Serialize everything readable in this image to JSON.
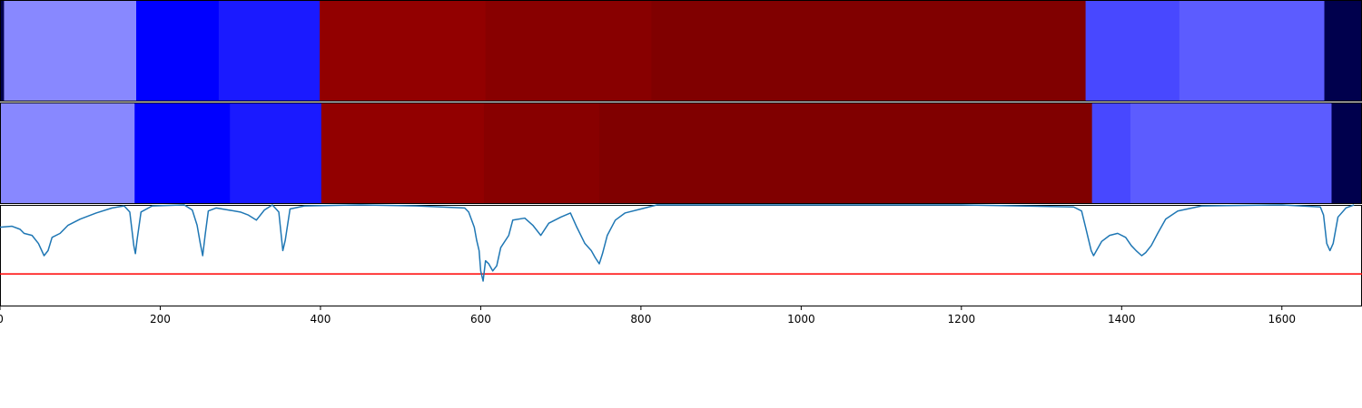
{
  "chart_data": {
    "type": "heatmap",
    "x_range": [
      0,
      1700
    ],
    "x_ticks": [
      "0",
      "200",
      "400",
      "600",
      "800",
      "1000",
      "1200",
      "1400",
      "1600"
    ],
    "x_tick_values": [
      0,
      200,
      400,
      600,
      800,
      1000,
      1200,
      1400,
      1600
    ],
    "rows": [
      {
        "segments": [
          {
            "start": 0,
            "end": 5,
            "color": "#00004d"
          },
          {
            "start": 5,
            "end": 170,
            "color": "#8888ff"
          },
          {
            "start": 170,
            "end": 273,
            "color": "#0000ff"
          },
          {
            "start": 273,
            "end": 399,
            "color": "#1a1aff"
          },
          {
            "start": 399,
            "end": 606,
            "color": "#920000"
          },
          {
            "start": 606,
            "end": 813,
            "color": "#880000"
          },
          {
            "start": 813,
            "end": 1355,
            "color": "#800000"
          },
          {
            "start": 1355,
            "end": 1472,
            "color": "#4848ff"
          },
          {
            "start": 1472,
            "end": 1653,
            "color": "#5c5cff"
          },
          {
            "start": 1653,
            "end": 1700,
            "color": "#00004d"
          }
        ]
      },
      {
        "segments": [
          {
            "start": 0,
            "end": 168,
            "color": "#8888ff"
          },
          {
            "start": 168,
            "end": 287,
            "color": "#0000ff"
          },
          {
            "start": 287,
            "end": 401,
            "color": "#1a1aff"
          },
          {
            "start": 401,
            "end": 604,
            "color": "#920000"
          },
          {
            "start": 604,
            "end": 748,
            "color": "#880000"
          },
          {
            "start": 748,
            "end": 1363,
            "color": "#800000"
          },
          {
            "start": 1363,
            "end": 1411,
            "color": "#4848ff"
          },
          {
            "start": 1411,
            "end": 1662,
            "color": "#5c5cff"
          },
          {
            "start": 1662,
            "end": 1700,
            "color": "#00004d"
          }
        ]
      }
    ],
    "line_series": {
      "color": "#1f77b4",
      "y_range": [
        0,
        1
      ],
      "points": [
        [
          0,
          0.78
        ],
        [
          15,
          0.79
        ],
        [
          25,
          0.76
        ],
        [
          30,
          0.72
        ],
        [
          40,
          0.7
        ],
        [
          48,
          0.62
        ],
        [
          55,
          0.5
        ],
        [
          60,
          0.55
        ],
        [
          65,
          0.68
        ],
        [
          75,
          0.72
        ],
        [
          85,
          0.8
        ],
        [
          100,
          0.86
        ],
        [
          120,
          0.92
        ],
        [
          140,
          0.97
        ],
        [
          155,
          0.99
        ],
        [
          162,
          0.93
        ],
        [
          167,
          0.6
        ],
        [
          169,
          0.52
        ],
        [
          171,
          0.65
        ],
        [
          176,
          0.93
        ],
        [
          190,
          0.99
        ],
        [
          230,
          1.0
        ],
        [
          240,
          0.95
        ],
        [
          246,
          0.8
        ],
        [
          250,
          0.62
        ],
        [
          253,
          0.5
        ],
        [
          256,
          0.7
        ],
        [
          260,
          0.94
        ],
        [
          270,
          0.97
        ],
        [
          285,
          0.95
        ],
        [
          300,
          0.93
        ],
        [
          310,
          0.9
        ],
        [
          320,
          0.85
        ],
        [
          330,
          0.95
        ],
        [
          340,
          1.0
        ],
        [
          348,
          0.93
        ],
        [
          353,
          0.55
        ],
        [
          356,
          0.65
        ],
        [
          362,
          0.96
        ],
        [
          380,
          0.99
        ],
        [
          450,
          1.0
        ],
        [
          520,
          0.99
        ],
        [
          580,
          0.97
        ],
        [
          585,
          0.93
        ],
        [
          592,
          0.78
        ],
        [
          595,
          0.65
        ],
        [
          598,
          0.55
        ],
        [
          600,
          0.35
        ],
        [
          603,
          0.25
        ],
        [
          606,
          0.45
        ],
        [
          610,
          0.42
        ],
        [
          615,
          0.35
        ],
        [
          620,
          0.4
        ],
        [
          625,
          0.58
        ],
        [
          635,
          0.7
        ],
        [
          640,
          0.85
        ],
        [
          655,
          0.87
        ],
        [
          665,
          0.8
        ],
        [
          675,
          0.7
        ],
        [
          685,
          0.82
        ],
        [
          700,
          0.88
        ],
        [
          712,
          0.92
        ],
        [
          720,
          0.78
        ],
        [
          730,
          0.62
        ],
        [
          738,
          0.55
        ],
        [
          743,
          0.48
        ],
        [
          748,
          0.42
        ],
        [
          752,
          0.52
        ],
        [
          758,
          0.7
        ],
        [
          768,
          0.85
        ],
        [
          780,
          0.92
        ],
        [
          800,
          0.96
        ],
        [
          820,
          1.0
        ],
        [
          1000,
          1.0
        ],
        [
          1200,
          1.0
        ],
        [
          1340,
          0.98
        ],
        [
          1350,
          0.94
        ],
        [
          1355,
          0.78
        ],
        [
          1358,
          0.68
        ],
        [
          1362,
          0.55
        ],
        [
          1365,
          0.5
        ],
        [
          1375,
          0.64
        ],
        [
          1385,
          0.7
        ],
        [
          1395,
          0.72
        ],
        [
          1405,
          0.68
        ],
        [
          1412,
          0.6
        ],
        [
          1418,
          0.55
        ],
        [
          1425,
          0.5
        ],
        [
          1430,
          0.53
        ],
        [
          1437,
          0.6
        ],
        [
          1445,
          0.72
        ],
        [
          1455,
          0.86
        ],
        [
          1470,
          0.94
        ],
        [
          1500,
          0.99
        ],
        [
          1600,
          1.0
        ],
        [
          1648,
          0.98
        ],
        [
          1652,
          0.9
        ],
        [
          1656,
          0.62
        ],
        [
          1660,
          0.55
        ],
        [
          1664,
          0.62
        ],
        [
          1670,
          0.88
        ],
        [
          1680,
          0.97
        ],
        [
          1690,
          1.0
        ]
      ]
    },
    "threshold": {
      "y": 0.32,
      "color": "#ff0000"
    },
    "grid": false,
    "title": "",
    "xlabel": "",
    "ylabel": ""
  }
}
